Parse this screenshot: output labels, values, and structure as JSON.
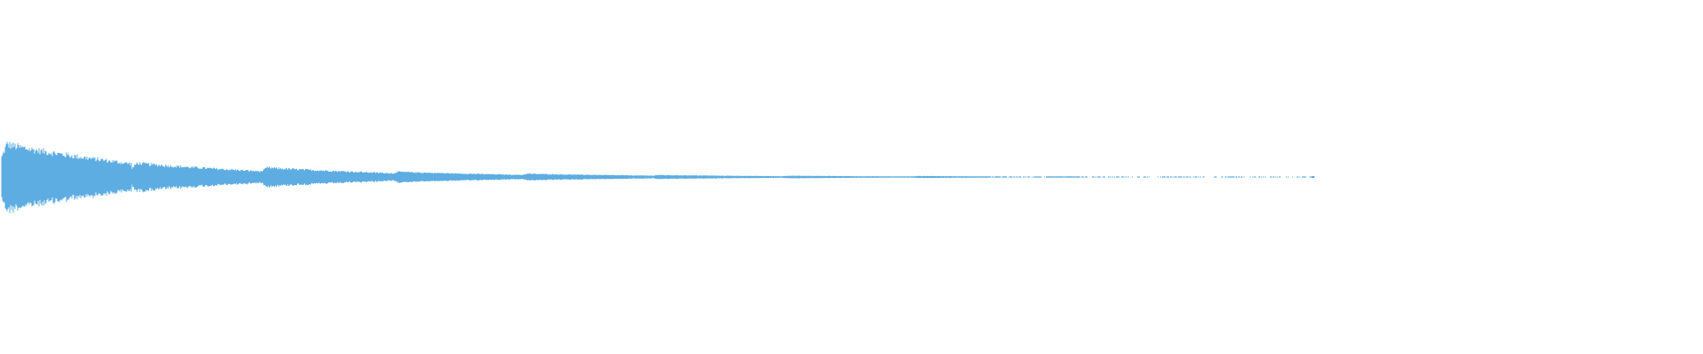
{
  "waveform": {
    "color": "#5dade2",
    "background": "#ffffff",
    "burst_peak_amplitudes": [
      0.2,
      0.085,
      0.057,
      0.032,
      0.02,
      0.012,
      0.008,
      0.006,
      0.004,
      0.003,
      0.002,
      0.002,
      0.002,
      0.002
    ],
    "decay_to_fraction_per_burst": 0.4
  }
}
